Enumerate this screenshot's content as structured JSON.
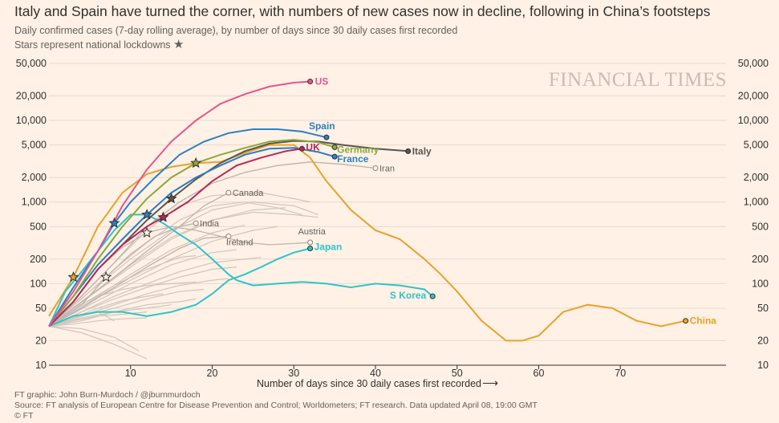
{
  "title": "Italy and Spain have turned the corner, with numbers of new cases now in decline, following in China’s footsteps",
  "subtitle": "Daily confirmed cases (7-day rolling average), by number of days since 30 daily cases first recorded",
  "note": "Stars represent national lockdowns",
  "watermark": "FINANCIAL TIMES",
  "footer": {
    "line1": "FT graphic: John Burn-Murdoch / @jburnmurdoch",
    "line2": "Source: FT analysis of European Centre for Disease Prevention and Control; Worldometers; FT research. Data updated April 08, 19:00 GMT",
    "line3": "© FT"
  },
  "colors": {
    "background": "#fff1e5",
    "US": "#e3568e",
    "Spain": "#2a7fc4",
    "Italy": "#5a5453",
    "Germany": "#8aaa3b",
    "UK": "#b8275a",
    "France": "#2a7fc4",
    "Japan": "#2fc4c9",
    "SKorea": "#2fc4c9",
    "China": "#e8a22a",
    "grey": "#cfc6bf"
  },
  "chart_data": {
    "type": "line",
    "yscale": "log",
    "xlabel": "Number of days since 30 daily cases first recorded",
    "ylabel": "",
    "xlim": [
      0,
      80
    ],
    "ylim": [
      10,
      50000
    ],
    "xticks": [
      10,
      20,
      30,
      40,
      50,
      60,
      70
    ],
    "yticks": [
      10,
      20,
      50,
      100,
      200,
      500,
      1000,
      2000,
      5000,
      10000,
      20000,
      50000
    ],
    "ytick_labels": [
      "10",
      "20",
      "50",
      "100",
      "200",
      "500",
      "1,000",
      "2,000",
      "5,000",
      "10,000",
      "20,000",
      "50,000"
    ],
    "series": [
      {
        "name": "US",
        "label": "US",
        "color": "#e3568e",
        "x": [
          0,
          3,
          6,
          9,
          12,
          15,
          18,
          21,
          24,
          27,
          30,
          32
        ],
        "y": [
          30,
          80,
          250,
          900,
          2500,
          5500,
          10000,
          16000,
          21000,
          26000,
          29000,
          30000
        ],
        "stars": []
      },
      {
        "name": "Spain",
        "label": "Spain",
        "color": "#2a7fc4",
        "x": [
          0,
          3,
          6,
          8,
          10,
          13,
          16,
          19,
          22,
          25,
          28,
          31,
          34
        ],
        "y": [
          30,
          90,
          250,
          550,
          1000,
          2000,
          3800,
          5500,
          7000,
          7800,
          7800,
          7300,
          6200
        ],
        "stars": [
          8
        ]
      },
      {
        "name": "Italy",
        "label": "Italy",
        "color": "#5a5453",
        "x": [
          0,
          3,
          6,
          9,
          12,
          15,
          18,
          21,
          24,
          27,
          30,
          33,
          36,
          40,
          44
        ],
        "y": [
          30,
          60,
          150,
          300,
          600,
          1100,
          1900,
          3000,
          4200,
          5200,
          5600,
          5500,
          5000,
          4500,
          4200
        ],
        "stars": [
          15
        ]
      },
      {
        "name": "Germany",
        "label": "Germany",
        "color": "#8aaa3b",
        "x": [
          0,
          3,
          6,
          9,
          12,
          15,
          18,
          21,
          24,
          27,
          30,
          33,
          35
        ],
        "y": [
          30,
          70,
          200,
          500,
          1100,
          2000,
          3000,
          3800,
          4600,
          5500,
          5800,
          5400,
          4700
        ],
        "stars": [
          18
        ]
      },
      {
        "name": "UK",
        "label": "UK",
        "color": "#b8275a",
        "x": [
          0,
          3,
          6,
          9,
          12,
          14,
          17,
          20,
          23,
          26,
          29,
          31
        ],
        "y": [
          30,
          60,
          150,
          300,
          500,
          650,
          1000,
          1800,
          2800,
          3500,
          4200,
          4500
        ],
        "stars": [
          14
        ]
      },
      {
        "name": "France",
        "label": "France",
        "color": "#2a7fc4",
        "x": [
          0,
          3,
          6,
          9,
          12,
          15,
          18,
          21,
          24,
          27,
          30,
          33,
          35
        ],
        "y": [
          30,
          70,
          170,
          350,
          700,
          1300,
          2000,
          2800,
          3800,
          4500,
          4600,
          4100,
          3600
        ],
        "stars": [
          12
        ]
      },
      {
        "name": "Japan",
        "label": "Japan",
        "color": "#2fc4c9",
        "x": [
          0,
          3,
          6,
          9,
          12,
          15,
          18,
          20,
          22,
          24,
          26,
          28,
          30,
          32
        ],
        "y": [
          30,
          40,
          45,
          45,
          40,
          45,
          55,
          75,
          110,
          130,
          160,
          200,
          240,
          270
        ],
        "stars": []
      },
      {
        "name": "S Korea",
        "label": "S Korea",
        "color": "#2fc4c9",
        "x": [
          0,
          2,
          4,
          6,
          8,
          10,
          12,
          14,
          16,
          18,
          20,
          22,
          23,
          25,
          28,
          31,
          34,
          37,
          40,
          43,
          46,
          47
        ],
        "y": [
          30,
          80,
          140,
          250,
          450,
          700,
          700,
          550,
          400,
          300,
          200,
          130,
          110,
          95,
          100,
          105,
          100,
          90,
          100,
          95,
          85,
          70
        ],
        "stars": []
      },
      {
        "name": "China",
        "label": "China",
        "color": "#e8a22a",
        "x": [
          0,
          3,
          6,
          9,
          12,
          15,
          18,
          21,
          24,
          27,
          30,
          32,
          34,
          37,
          40,
          43,
          46,
          48,
          50,
          53,
          56,
          58,
          60,
          63,
          66,
          69,
          72,
          75,
          78
        ],
        "y": [
          40,
          120,
          500,
          1300,
          2200,
          2700,
          3000,
          3100,
          4000,
          5000,
          5000,
          3500,
          1800,
          800,
          450,
          350,
          200,
          130,
          80,
          35,
          20,
          20,
          23,
          45,
          55,
          50,
          35,
          30,
          35
        ],
        "stars": [
          3
        ]
      },
      {
        "name": "Iran",
        "label": "Iran",
        "color": "#cfc6bf",
        "x": [
          0,
          4,
          8,
          12,
          16,
          20,
          24,
          28,
          32,
          36,
          40
        ],
        "y": [
          30,
          70,
          180,
          500,
          1000,
          1700,
          2300,
          2800,
          3100,
          2900,
          2600
        ],
        "stars": []
      },
      {
        "name": "Canada",
        "label": "Canada",
        "color": "#cfc6bf",
        "x": [
          0,
          4,
          8,
          12,
          16,
          19,
          22
        ],
        "y": [
          30,
          60,
          120,
          250,
          500,
          900,
          1300
        ],
        "stars": []
      },
      {
        "name": "India",
        "label": "India",
        "color": "#cfc6bf",
        "x": [
          0,
          4,
          7,
          10,
          13,
          16,
          18
        ],
        "y": [
          30,
          55,
          120,
          230,
          380,
          500,
          550
        ],
        "stars": [
          7
        ]
      },
      {
        "name": "Austria",
        "label": "Austria",
        "color": "#cfc6bf",
        "x": [
          0,
          3,
          6,
          9,
          12,
          15,
          18,
          21,
          24,
          27,
          30,
          32
        ],
        "y": [
          30,
          60,
          150,
          280,
          420,
          500,
          450,
          380,
          320,
          300,
          310,
          320
        ],
        "stars": [
          12
        ]
      },
      {
        "name": "Ireland",
        "label": "Ireland",
        "color": "#cfc6bf",
        "x": [
          0,
          4,
          8,
          12,
          16,
          19,
          22
        ],
        "y": [
          30,
          50,
          90,
          160,
          270,
          360,
          380
        ],
        "stars": []
      }
    ],
    "background_series": [
      {
        "x": [
          0,
          5,
          10,
          15,
          20,
          25,
          30,
          33
        ],
        "y": [
          30,
          80,
          200,
          450,
          800,
          1000,
          900,
          700
        ]
      },
      {
        "x": [
          0,
          5,
          10,
          15,
          20,
          25,
          30,
          33
        ],
        "y": [
          30,
          70,
          160,
          350,
          600,
          750,
          700,
          650
        ]
      },
      {
        "x": [
          0,
          5,
          10,
          15,
          20,
          25,
          28
        ],
        "y": [
          30,
          60,
          110,
          200,
          330,
          450,
          500
        ]
      },
      {
        "x": [
          0,
          5,
          10,
          15,
          20,
          23
        ],
        "y": [
          30,
          55,
          100,
          170,
          240,
          260
        ]
      },
      {
        "x": [
          0,
          4,
          8,
          12,
          16,
          20,
          24,
          26
        ],
        "y": [
          30,
          45,
          70,
          100,
          140,
          180,
          200,
          210
        ]
      },
      {
        "x": [
          0,
          4,
          8,
          12,
          16,
          20,
          23
        ],
        "y": [
          30,
          45,
          65,
          90,
          120,
          150,
          160
        ]
      },
      {
        "x": [
          0,
          4,
          8,
          12,
          16,
          20,
          22
        ],
        "y": [
          30,
          40,
          55,
          75,
          95,
          110,
          115
        ]
      },
      {
        "x": [
          0,
          4,
          8,
          12,
          16,
          19
        ],
        "y": [
          30,
          40,
          50,
          65,
          80,
          85
        ]
      },
      {
        "x": [
          0,
          4,
          8,
          12,
          16,
          18
        ],
        "y": [
          30,
          35,
          45,
          55,
          60,
          65
        ]
      },
      {
        "x": [
          0,
          4,
          8,
          12,
          15
        ],
        "y": [
          30,
          38,
          45,
          50,
          55
        ]
      },
      {
        "x": [
          0,
          3,
          6,
          9,
          12
        ],
        "y": [
          30,
          35,
          40,
          42,
          45
        ]
      },
      {
        "x": [
          0,
          3,
          6,
          9,
          12,
          14
        ],
        "y": [
          30,
          38,
          50,
          62,
          70,
          75
        ]
      },
      {
        "x": [
          0,
          3,
          6,
          9,
          12
        ],
        "y": [
          30,
          32,
          35,
          37,
          38
        ]
      },
      {
        "x": [
          0,
          4,
          8,
          12
        ],
        "y": [
          30,
          25,
          18,
          12
        ]
      },
      {
        "x": [
          0,
          4,
          8,
          11
        ],
        "y": [
          30,
          28,
          22,
          15
        ]
      },
      {
        "x": [
          0,
          3,
          6,
          8
        ],
        "y": [
          30,
          40,
          45,
          35
        ]
      },
      {
        "x": [
          0,
          5,
          10,
          15,
          20,
          25,
          29
        ],
        "y": [
          30,
          70,
          170,
          370,
          600,
          800,
          850
        ]
      },
      {
        "x": [
          0,
          5,
          10,
          15,
          20,
          24
        ],
        "y": [
          30,
          60,
          130,
          260,
          420,
          520
        ]
      },
      {
        "x": [
          0,
          4,
          8,
          12,
          16,
          18
        ],
        "y": [
          30,
          55,
          95,
          150,
          210,
          220
        ]
      },
      {
        "x": [
          0,
          4,
          8,
          12,
          16,
          20,
          26,
          30,
          32
        ],
        "y": [
          30,
          70,
          180,
          450,
          900,
          1200,
          1300,
          1100,
          1000
        ]
      },
      {
        "x": [
          0,
          4,
          8,
          12,
          16,
          20,
          24,
          28,
          31
        ],
        "y": [
          30,
          65,
          150,
          320,
          600,
          900,
          1000,
          850,
          700
        ]
      },
      {
        "x": [
          0,
          3,
          6,
          9,
          12,
          15,
          18
        ],
        "y": [
          30,
          50,
          70,
          85,
          95,
          100,
          105
        ]
      }
    ]
  }
}
